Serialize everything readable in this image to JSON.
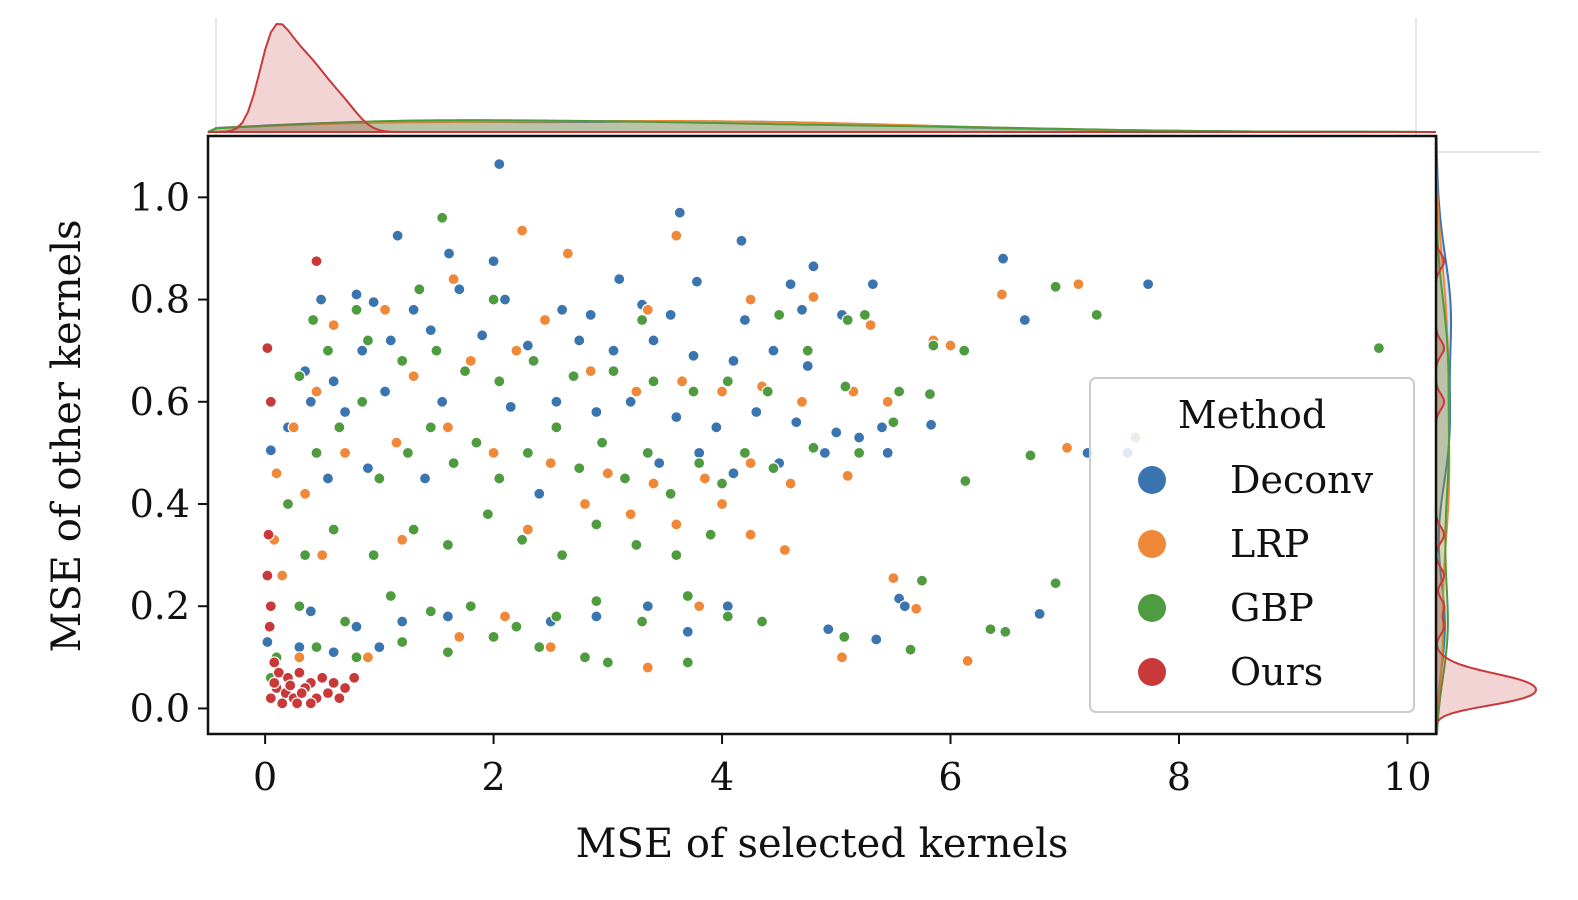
{
  "chart_data": {
    "type": "scatter",
    "title": "",
    "xlabel": "MSE of selected kernels",
    "ylabel": "MSE of other kernels",
    "xlim": [
      -0.5,
      10.25
    ],
    "ylim": [
      -0.05,
      1.12
    ],
    "xticks": [
      "0",
      "2",
      "4",
      "6",
      "8",
      "10"
    ],
    "yticks": [
      "0.0",
      "0.2",
      "0.4",
      "0.6",
      "0.8",
      "1.0"
    ],
    "grid": false,
    "legend": {
      "title": "Method",
      "position": "lower-right"
    },
    "marginal": {
      "top": "kde",
      "right": "kde"
    },
    "series": [
      {
        "name": "Deconv",
        "color": "#3a75b0",
        "points": [
          [
            2.05,
            1.065
          ],
          [
            3.63,
            0.97
          ],
          [
            4.17,
            0.915
          ],
          [
            1.16,
            0.925
          ],
          [
            1.61,
            0.89
          ],
          [
            2.0,
            0.875
          ],
          [
            4.8,
            0.865
          ],
          [
            6.46,
            0.88
          ],
          [
            7.73,
            0.83
          ],
          [
            5.32,
            0.83
          ],
          [
            4.6,
            0.83
          ],
          [
            3.1,
            0.84
          ],
          [
            3.78,
            0.835
          ],
          [
            0.49,
            0.8
          ],
          [
            0.8,
            0.81
          ],
          [
            0.95,
            0.795
          ],
          [
            1.3,
            0.78
          ],
          [
            1.7,
            0.82
          ],
          [
            2.1,
            0.8
          ],
          [
            2.6,
            0.78
          ],
          [
            2.85,
            0.77
          ],
          [
            3.3,
            0.79
          ],
          [
            3.55,
            0.77
          ],
          [
            4.2,
            0.76
          ],
          [
            4.7,
            0.78
          ],
          [
            5.05,
            0.77
          ],
          [
            6.65,
            0.76
          ],
          [
            0.35,
            0.66
          ],
          [
            0.6,
            0.64
          ],
          [
            0.85,
            0.7
          ],
          [
            1.1,
            0.72
          ],
          [
            1.45,
            0.74
          ],
          [
            1.9,
            0.73
          ],
          [
            2.3,
            0.71
          ],
          [
            2.75,
            0.72
          ],
          [
            3.05,
            0.7
          ],
          [
            3.4,
            0.72
          ],
          [
            3.75,
            0.69
          ],
          [
            4.1,
            0.68
          ],
          [
            4.45,
            0.7
          ],
          [
            4.75,
            0.67
          ],
          [
            0.05,
            0.505
          ],
          [
            0.2,
            0.55
          ],
          [
            0.4,
            0.6
          ],
          [
            0.7,
            0.58
          ],
          [
            1.05,
            0.62
          ],
          [
            1.55,
            0.6
          ],
          [
            2.15,
            0.59
          ],
          [
            2.55,
            0.6
          ],
          [
            2.9,
            0.58
          ],
          [
            3.2,
            0.6
          ],
          [
            3.6,
            0.57
          ],
          [
            3.95,
            0.55
          ],
          [
            4.3,
            0.58
          ],
          [
            4.65,
            0.56
          ],
          [
            5.0,
            0.54
          ],
          [
            5.2,
            0.53
          ],
          [
            5.4,
            0.55
          ],
          [
            5.83,
            0.555
          ],
          [
            5.45,
            0.5
          ],
          [
            4.9,
            0.5
          ],
          [
            4.5,
            0.48
          ],
          [
            4.1,
            0.46
          ],
          [
            3.8,
            0.5
          ],
          [
            3.45,
            0.48
          ],
          [
            2.4,
            0.42
          ],
          [
            1.4,
            0.45
          ],
          [
            0.9,
            0.47
          ],
          [
            0.55,
            0.45
          ],
          [
            7.2,
            0.5
          ],
          [
            7.55,
            0.5
          ],
          [
            5.55,
            0.215
          ],
          [
            5.6,
            0.2
          ],
          [
            6.78,
            0.185
          ],
          [
            4.93,
            0.155
          ],
          [
            5.35,
            0.135
          ],
          [
            4.05,
            0.2
          ],
          [
            3.35,
            0.2
          ],
          [
            2.9,
            0.18
          ],
          [
            2.5,
            0.17
          ],
          [
            1.6,
            0.18
          ],
          [
            1.2,
            0.17
          ],
          [
            0.8,
            0.16
          ],
          [
            0.4,
            0.19
          ],
          [
            3.7,
            0.15
          ],
          [
            0.02,
            0.13
          ],
          [
            0.1,
            0.1
          ],
          [
            0.3,
            0.12
          ],
          [
            0.6,
            0.11
          ],
          [
            1.0,
            0.12
          ]
        ]
      },
      {
        "name": "LRP",
        "color": "#f0883a",
        "points": [
          [
            2.25,
            0.935
          ],
          [
            3.6,
            0.925
          ],
          [
            2.65,
            0.89
          ],
          [
            6.45,
            0.81
          ],
          [
            7.12,
            0.83
          ],
          [
            4.8,
            0.805
          ],
          [
            4.25,
            0.8
          ],
          [
            1.65,
            0.84
          ],
          [
            1.05,
            0.78
          ],
          [
            0.6,
            0.75
          ],
          [
            2.45,
            0.76
          ],
          [
            3.35,
            0.78
          ],
          [
            5.3,
            0.75
          ],
          [
            5.85,
            0.72
          ],
          [
            6.0,
            0.71
          ],
          [
            0.25,
            0.55
          ],
          [
            0.45,
            0.62
          ],
          [
            0.85,
            0.6
          ],
          [
            1.3,
            0.65
          ],
          [
            1.8,
            0.68
          ],
          [
            2.2,
            0.7
          ],
          [
            2.85,
            0.66
          ],
          [
            3.25,
            0.62
          ],
          [
            3.65,
            0.64
          ],
          [
            4.0,
            0.62
          ],
          [
            4.35,
            0.63
          ],
          [
            4.7,
            0.6
          ],
          [
            5.15,
            0.62
          ],
          [
            5.45,
            0.6
          ],
          [
            0.1,
            0.46
          ],
          [
            0.35,
            0.42
          ],
          [
            0.7,
            0.5
          ],
          [
            1.15,
            0.52
          ],
          [
            1.6,
            0.55
          ],
          [
            2.0,
            0.5
          ],
          [
            2.5,
            0.48
          ],
          [
            3.0,
            0.46
          ],
          [
            3.4,
            0.44
          ],
          [
            3.85,
            0.45
          ],
          [
            4.25,
            0.48
          ],
          [
            4.6,
            0.44
          ],
          [
            5.1,
            0.455
          ],
          [
            7.02,
            0.51
          ],
          [
            2.8,
            0.4
          ],
          [
            3.2,
            0.38
          ],
          [
            3.6,
            0.36
          ],
          [
            4.0,
            0.4
          ],
          [
            4.25,
            0.34
          ],
          [
            4.55,
            0.31
          ],
          [
            2.3,
            0.35
          ],
          [
            1.2,
            0.33
          ],
          [
            0.5,
            0.3
          ],
          [
            0.08,
            0.33
          ],
          [
            0.15,
            0.26
          ],
          [
            5.5,
            0.255
          ],
          [
            5.7,
            0.195
          ],
          [
            3.8,
            0.2
          ],
          [
            2.1,
            0.18
          ],
          [
            1.7,
            0.14
          ],
          [
            0.9,
            0.1
          ],
          [
            0.3,
            0.1
          ],
          [
            3.35,
            0.08
          ],
          [
            5.05,
            0.1
          ],
          [
            6.15,
            0.093
          ],
          [
            2.5,
            0.12
          ]
        ]
      },
      {
        "name": "GBP",
        "color": "#4f9b3f",
        "points": [
          [
            1.55,
            0.96
          ],
          [
            0.42,
            0.76
          ],
          [
            1.35,
            0.82
          ],
          [
            0.8,
            0.78
          ],
          [
            2.0,
            0.8
          ],
          [
            3.3,
            0.76
          ],
          [
            4.5,
            0.77
          ],
          [
            5.1,
            0.76
          ],
          [
            5.25,
            0.77
          ],
          [
            6.92,
            0.825
          ],
          [
            7.28,
            0.77
          ],
          [
            9.75,
            0.705
          ],
          [
            6.12,
            0.7
          ],
          [
            5.85,
            0.71
          ],
          [
            4.75,
            0.7
          ],
          [
            0.3,
            0.65
          ],
          [
            0.55,
            0.7
          ],
          [
            0.9,
            0.72
          ],
          [
            1.2,
            0.68
          ],
          [
            1.5,
            0.7
          ],
          [
            1.75,
            0.66
          ],
          [
            2.05,
            0.64
          ],
          [
            2.35,
            0.68
          ],
          [
            2.7,
            0.65
          ],
          [
            3.05,
            0.66
          ],
          [
            3.4,
            0.64
          ],
          [
            3.75,
            0.62
          ],
          [
            4.05,
            0.64
          ],
          [
            4.4,
            0.62
          ],
          [
            5.08,
            0.63
          ],
          [
            5.55,
            0.62
          ],
          [
            5.82,
            0.615
          ],
          [
            0.2,
            0.4
          ],
          [
            0.45,
            0.5
          ],
          [
            0.65,
            0.55
          ],
          [
            0.85,
            0.6
          ],
          [
            1.0,
            0.45
          ],
          [
            1.25,
            0.5
          ],
          [
            1.45,
            0.55
          ],
          [
            1.65,
            0.48
          ],
          [
            1.85,
            0.52
          ],
          [
            2.05,
            0.45
          ],
          [
            2.3,
            0.5
          ],
          [
            2.55,
            0.55
          ],
          [
            2.75,
            0.47
          ],
          [
            2.95,
            0.52
          ],
          [
            3.15,
            0.45
          ],
          [
            3.35,
            0.5
          ],
          [
            3.55,
            0.42
          ],
          [
            3.8,
            0.48
          ],
          [
            4.0,
            0.44
          ],
          [
            4.2,
            0.5
          ],
          [
            4.45,
            0.47
          ],
          [
            4.8,
            0.51
          ],
          [
            5.2,
            0.5
          ],
          [
            5.5,
            0.56
          ],
          [
            6.13,
            0.445
          ],
          [
            6.7,
            0.495
          ],
          [
            7.62,
            0.53
          ],
          [
            0.35,
            0.3
          ],
          [
            0.6,
            0.35
          ],
          [
            0.95,
            0.3
          ],
          [
            1.3,
            0.35
          ],
          [
            1.6,
            0.32
          ],
          [
            1.95,
            0.38
          ],
          [
            2.25,
            0.33
          ],
          [
            2.6,
            0.3
          ],
          [
            2.9,
            0.36
          ],
          [
            3.25,
            0.32
          ],
          [
            3.6,
            0.3
          ],
          [
            3.9,
            0.34
          ],
          [
            0.3,
            0.2
          ],
          [
            0.7,
            0.17
          ],
          [
            1.1,
            0.22
          ],
          [
            1.45,
            0.19
          ],
          [
            1.8,
            0.2
          ],
          [
            2.2,
            0.16
          ],
          [
            2.55,
            0.18
          ],
          [
            2.9,
            0.21
          ],
          [
            3.3,
            0.17
          ],
          [
            3.7,
            0.22
          ],
          [
            4.05,
            0.18
          ],
          [
            4.35,
            0.17
          ],
          [
            5.07,
            0.14
          ],
          [
            5.65,
            0.115
          ],
          [
            6.35,
            0.155
          ],
          [
            6.48,
            0.15
          ],
          [
            6.92,
            0.245
          ],
          [
            5.75,
            0.25
          ],
          [
            0.1,
            0.1
          ],
          [
            0.45,
            0.12
          ],
          [
            0.8,
            0.1
          ],
          [
            1.2,
            0.13
          ],
          [
            1.6,
            0.11
          ],
          [
            2.0,
            0.14
          ],
          [
            2.4,
            0.12
          ],
          [
            2.8,
            0.1
          ],
          [
            3.0,
            0.09
          ],
          [
            3.7,
            0.09
          ],
          [
            0.05,
            0.06
          ]
        ]
      },
      {
        "name": "Ours",
        "color": "#c9393a",
        "points": [
          [
            0.45,
            0.875
          ],
          [
            0.02,
            0.705
          ],
          [
            0.05,
            0.6
          ],
          [
            0.03,
            0.34
          ],
          [
            0.02,
            0.26
          ],
          [
            0.05,
            0.2
          ],
          [
            0.04,
            0.16
          ],
          [
            0.08,
            0.09
          ],
          [
            0.12,
            0.07
          ],
          [
            0.2,
            0.06
          ],
          [
            0.3,
            0.07
          ],
          [
            0.4,
            0.05
          ],
          [
            0.5,
            0.06
          ],
          [
            0.6,
            0.05
          ],
          [
            0.7,
            0.04
          ],
          [
            0.78,
            0.06
          ],
          [
            0.1,
            0.04
          ],
          [
            0.18,
            0.03
          ],
          [
            0.25,
            0.02
          ],
          [
            0.35,
            0.04
          ],
          [
            0.45,
            0.02
          ],
          [
            0.55,
            0.03
          ],
          [
            0.65,
            0.02
          ],
          [
            0.15,
            0.01
          ],
          [
            0.28,
            0.01
          ],
          [
            0.4,
            0.01
          ],
          [
            0.05,
            0.02
          ],
          [
            0.08,
            0.05
          ],
          [
            0.22,
            0.045
          ],
          [
            0.32,
            0.03
          ]
        ]
      }
    ]
  }
}
